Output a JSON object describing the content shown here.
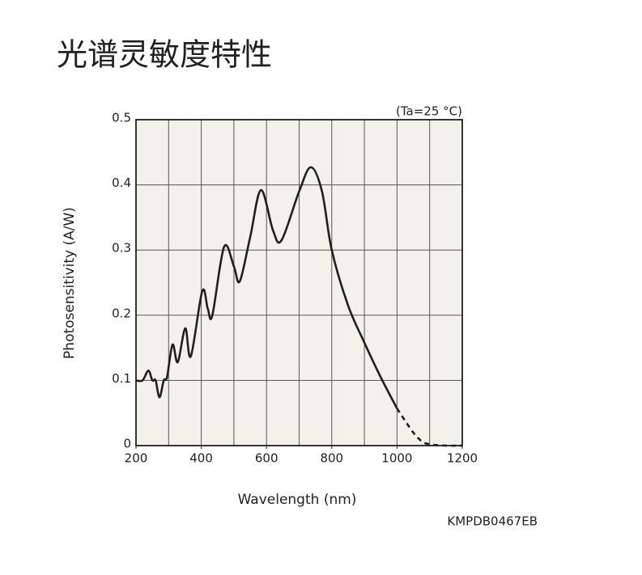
{
  "chart_data": {
    "type": "line",
    "title": "光谱灵敏度特性",
    "annotation": "(Ta=25 °C)",
    "x_label": "Wavelength (nm)",
    "y_label": "Photosensitivity (A/W)",
    "code": "KMPDB0467EB",
    "xlim": [
      200,
      1200
    ],
    "ylim": [
      0,
      0.5
    ],
    "xticks": [
      200,
      400,
      600,
      800,
      1000,
      1200
    ],
    "xgrid": [
      300,
      400,
      500,
      600,
      700,
      800,
      900,
      1000,
      1100
    ],
    "yticks": [
      0,
      0.1,
      0.2,
      0.3,
      0.4,
      0.5
    ],
    "grid": true,
    "plot_color": "#f3f2ea",
    "series": [
      {
        "color": "#231f20",
        "style": "solid",
        "x": [
          200,
          220,
          238,
          250,
          260,
          272,
          285,
          295,
          312,
          328,
          351,
          368,
          403,
          420,
          434,
          470,
          500,
          518,
          550,
          583,
          620,
          646,
          700,
          736,
          770,
          800,
          850,
          900,
          950,
          1000
        ],
        "values": [
          0.1,
          0.1,
          0.115,
          0.1,
          0.1,
          0.074,
          0.1,
          0.105,
          0.155,
          0.128,
          0.18,
          0.137,
          0.237,
          0.21,
          0.2,
          0.305,
          0.275,
          0.252,
          0.32,
          0.392,
          0.33,
          0.315,
          0.39,
          0.427,
          0.39,
          0.3,
          0.215,
          0.158,
          0.105,
          0.057
        ]
      },
      {
        "color": "#231f20",
        "style": "dashed",
        "x": [
          1000,
          1025,
          1050,
          1075,
          1100,
          1150,
          1200
        ],
        "values": [
          0.057,
          0.038,
          0.02,
          0.007,
          0.002,
          0,
          0
        ]
      }
    ]
  }
}
